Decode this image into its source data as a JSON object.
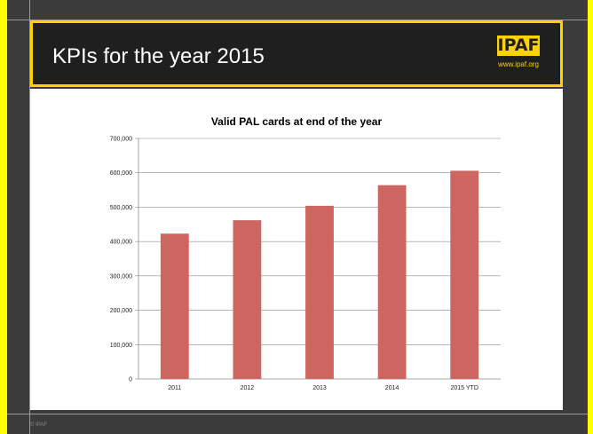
{
  "slide": {
    "title": "KPIs for the year 2015",
    "logo_text": "IPAF",
    "logo_url": "www.ipaf.org",
    "footer": "© IPAF"
  },
  "colors": {
    "background": "#ffff00",
    "frame": "#3b3b3b",
    "banner": "#1f1f1f",
    "accent": "#ffd200",
    "bar": "#cd6560"
  },
  "chart_data": {
    "type": "bar",
    "title": "Valid PAL cards at end of the year",
    "categories": [
      "2011",
      "2012",
      "2013",
      "2014",
      "2015 YTD"
    ],
    "values": [
      423000,
      462000,
      504000,
      564000,
      606000
    ],
    "ylim": [
      0,
      700000
    ],
    "yticks": [
      "0",
      "100,000",
      "200,000",
      "300,000",
      "400,000",
      "500,000",
      "600,000",
      "700,000"
    ],
    "grid": true,
    "xlabel": "",
    "ylabel": ""
  }
}
